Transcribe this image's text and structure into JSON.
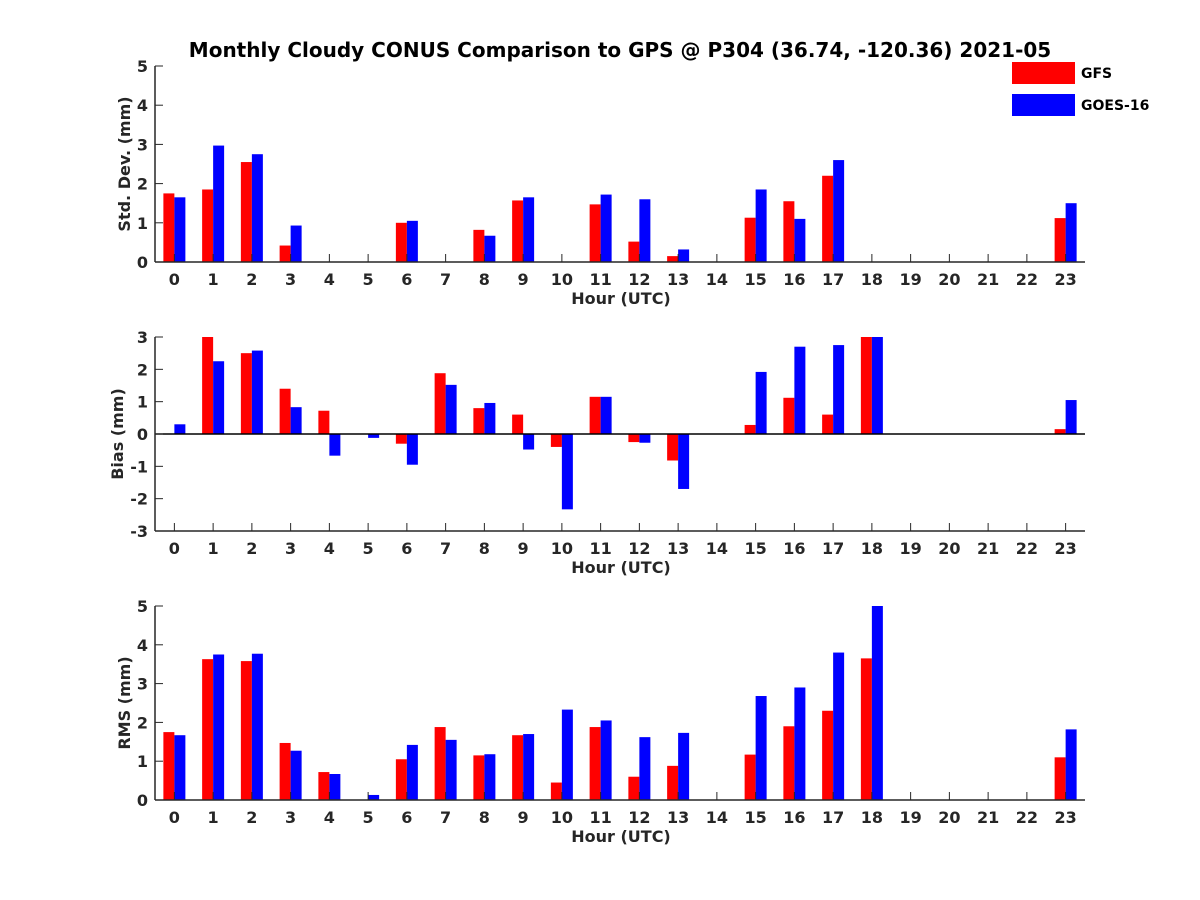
{
  "title": "Monthly Cloudy CONUS Comparison to GPS @ P304 (36.74, -120.36) 2021-05",
  "legend": [
    {
      "name": "GFS",
      "color": "#ff0000"
    },
    {
      "name": "GOES-16",
      "color": "#0000ff"
    }
  ],
  "chart_data": [
    {
      "type": "bar",
      "xlabel": "Hour (UTC)",
      "ylabel": "Std. Dev. (mm)",
      "ylim": [
        0,
        5
      ],
      "yticks": [
        "0",
        "1",
        "2",
        "3",
        "4",
        "5"
      ],
      "categories": [
        "0",
        "1",
        "2",
        "3",
        "4",
        "5",
        "6",
        "7",
        "8",
        "9",
        "10",
        "11",
        "12",
        "13",
        "14",
        "15",
        "16",
        "17",
        "18",
        "19",
        "20",
        "21",
        "22",
        "23"
      ],
      "series": [
        {
          "name": "GFS",
          "color": "#ff0000",
          "values": [
            1.75,
            1.85,
            2.55,
            0.42,
            0,
            0,
            1.0,
            0,
            0.82,
            1.57,
            0,
            1.47,
            0.52,
            0.15,
            0,
            1.13,
            1.55,
            2.2,
            0,
            0,
            0,
            0,
            0,
            1.12
          ]
        },
        {
          "name": "GOES-16",
          "color": "#0000ff",
          "values": [
            1.65,
            2.97,
            2.75,
            0.93,
            0,
            0,
            1.05,
            0,
            0.67,
            1.65,
            0,
            1.72,
            1.6,
            0.32,
            0,
            1.85,
            1.1,
            2.6,
            0,
            0,
            0,
            0,
            0,
            1.5
          ]
        }
      ]
    },
    {
      "type": "bar",
      "xlabel": "Hour (UTC)",
      "ylabel": "Bias (mm)",
      "ylim": [
        -3,
        3
      ],
      "yticks": [
        "-3",
        "-2",
        "-1",
        "0",
        "1",
        "2",
        "3"
      ],
      "categories": [
        "0",
        "1",
        "2",
        "3",
        "4",
        "5",
        "6",
        "7",
        "8",
        "9",
        "10",
        "11",
        "12",
        "13",
        "14",
        "15",
        "16",
        "17",
        "18",
        "19",
        "20",
        "21",
        "22",
        "23"
      ],
      "series": [
        {
          "name": "GFS",
          "color": "#ff0000",
          "values": [
            0,
            3.0,
            2.5,
            1.4,
            0.72,
            0,
            -0.3,
            1.88,
            0.8,
            0.6,
            -0.4,
            1.15,
            -0.25,
            -0.82,
            0,
            0.28,
            1.12,
            0.6,
            3.0,
            0,
            0,
            0,
            0,
            0.15
          ]
        },
        {
          "name": "GOES-16",
          "color": "#0000ff",
          "values": [
            0.3,
            2.25,
            2.58,
            0.83,
            -0.67,
            -0.12,
            -0.95,
            1.52,
            0.96,
            -0.48,
            -2.33,
            1.15,
            -0.27,
            -1.7,
            0,
            1.92,
            2.7,
            2.75,
            3.0,
            0,
            0,
            0,
            0,
            1.05
          ]
        }
      ]
    },
    {
      "type": "bar",
      "xlabel": "Hour (UTC)",
      "ylabel": "RMS (mm)",
      "ylim": [
        0,
        5
      ],
      "yticks": [
        "0",
        "1",
        "2",
        "3",
        "4",
        "5"
      ],
      "categories": [
        "0",
        "1",
        "2",
        "3",
        "4",
        "5",
        "6",
        "7",
        "8",
        "9",
        "10",
        "11",
        "12",
        "13",
        "14",
        "15",
        "16",
        "17",
        "18",
        "19",
        "20",
        "21",
        "22",
        "23"
      ],
      "series": [
        {
          "name": "GFS",
          "color": "#ff0000",
          "values": [
            1.75,
            3.63,
            3.58,
            1.47,
            0.72,
            0,
            1.05,
            1.88,
            1.15,
            1.67,
            0.45,
            1.88,
            0.6,
            0.88,
            0,
            1.17,
            1.9,
            2.3,
            3.65,
            0,
            0,
            0,
            0,
            1.1
          ]
        },
        {
          "name": "GOES-16",
          "color": "#0000ff",
          "values": [
            1.67,
            3.75,
            3.77,
            1.27,
            0.67,
            0.13,
            1.42,
            1.55,
            1.18,
            1.7,
            2.33,
            2.05,
            1.62,
            1.73,
            0,
            2.68,
            2.9,
            3.8,
            5.0,
            0,
            0,
            0,
            0,
            1.82
          ]
        }
      ]
    }
  ]
}
